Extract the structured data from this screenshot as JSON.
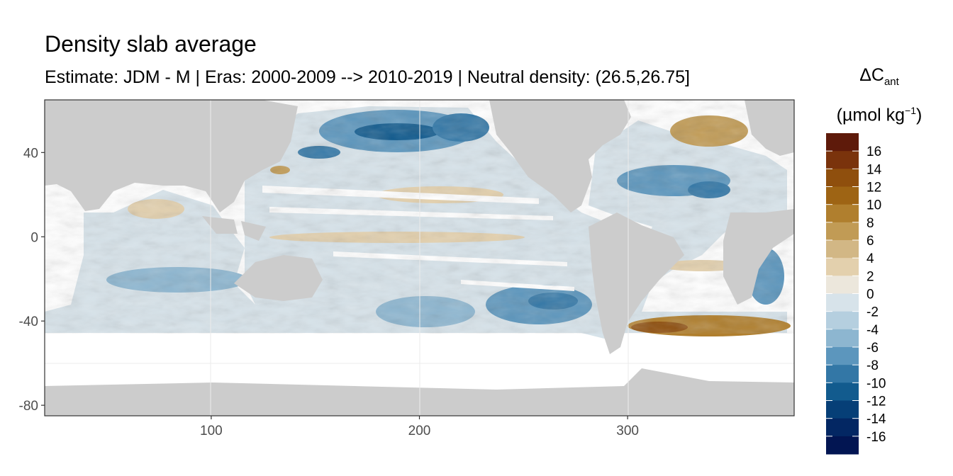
{
  "title": "Density slab average",
  "subtitle": "Estimate: JDM - M | Eras: 2000-2009 --> 2010-2019 | Neutral density: (26.5,26.75]",
  "legend": {
    "title_main": "ΔC",
    "title_sub": "ant",
    "unit_pre": "(µmol kg",
    "unit_sup": "−1",
    "unit_post": ")",
    "breaks": [
      "16",
      "14",
      "12",
      "10",
      "8",
      "6",
      "4",
      "2",
      "0",
      "-2",
      "-4",
      "-6",
      "-8",
      "-10",
      "-12",
      "-14",
      "-16"
    ],
    "colors": [
      "#5e1a0a",
      "#7a330c",
      "#8f4f0d",
      "#9e6414",
      "#b07f2e",
      "#c19b55",
      "#d2b785",
      "#e3d0ad",
      "#ece7dc",
      "#d7e3ea",
      "#b5cfdf",
      "#8db6d0",
      "#5c96bd",
      "#3377a6",
      "#125b8e",
      "#063f77",
      "#032763",
      "#021552"
    ]
  },
  "chart_data": {
    "type": "heatmap",
    "title": "Density slab average",
    "subtitle": "Estimate: JDM - M | Eras: 2000-2009 --> 2010-2019 | Neutral density: (26.5,26.75]",
    "xlabel": "",
    "ylabel": "",
    "xlim": [
      20,
      380
    ],
    "ylim": [
      -85,
      65
    ],
    "x_ticks": [
      "100",
      "200",
      "300"
    ],
    "y_ticks": [
      "40",
      "0",
      "-40",
      "-80"
    ],
    "color_scale_range": [
      -18,
      18
    ],
    "grid": true,
    "legend_position": "right",
    "colors": {
      "land": "#cccccc",
      "no_data": "#ffffff",
      "panel_border": "#333333",
      "gridline": "#ebebeb"
    }
  }
}
